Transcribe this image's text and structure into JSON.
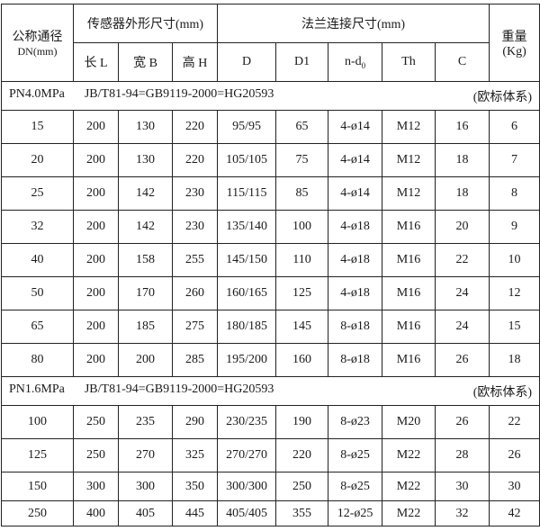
{
  "header": {
    "dn_label": "公称通径",
    "dn_unit": "DN(mm)",
    "sensor_group": "传感器外形尺寸(mm)",
    "flange_group": "法兰连接尺寸(mm)",
    "weight_label": "重量",
    "weight_unit": "(Kg)",
    "columns": [
      "长 L",
      "宽 B",
      "高 H",
      "D",
      "D1",
      "n-d",
      "Th",
      "C"
    ],
    "nd_subscript": "0"
  },
  "sections": [
    {
      "pressure": "PN4.0MPa",
      "standard": "JB/T81-94=GB9119-2000=HG20593",
      "system": "(欧标体系)",
      "rows": [
        [
          "15",
          "200",
          "130",
          "220",
          "95/95",
          "65",
          "4-ø14",
          "M12",
          "16",
          "6"
        ],
        [
          "20",
          "200",
          "130",
          "220",
          "105/105",
          "75",
          "4-ø14",
          "M12",
          "18",
          "7"
        ],
        [
          "25",
          "200",
          "142",
          "230",
          "115/115",
          "85",
          "4-ø14",
          "M12",
          "18",
          "8"
        ],
        [
          "32",
          "200",
          "142",
          "230",
          "135/140",
          "100",
          "4-ø18",
          "M16",
          "20",
          "9"
        ],
        [
          "40",
          "200",
          "158",
          "255",
          "145/150",
          "110",
          "4-ø18",
          "M16",
          "22",
          "10"
        ],
        [
          "50",
          "200",
          "170",
          "260",
          "160/165",
          "125",
          "4-ø18",
          "M16",
          "24",
          "12"
        ],
        [
          "65",
          "200",
          "185",
          "275",
          "180/185",
          "145",
          "8-ø18",
          "M16",
          "24",
          "15"
        ],
        [
          "80",
          "200",
          "200",
          "285",
          "195/200",
          "160",
          "8-ø18",
          "M16",
          "26",
          "18"
        ]
      ]
    },
    {
      "pressure": "PN1.6MPa",
      "standard": "JB/T81-94=GB9119-2000=HG20593",
      "system": "(欧标体系)",
      "rows": [
        [
          "100",
          "250",
          "235",
          "290",
          "230/235",
          "190",
          "8-ø23",
          "M20",
          "26",
          "22"
        ],
        [
          "125",
          "250",
          "270",
          "325",
          "270/270",
          "220",
          "8-ø25",
          "M22",
          "28",
          "26"
        ],
        [
          "150",
          "300",
          "300",
          "350",
          "300/300",
          "250",
          "8-ø25",
          "M22",
          "30",
          "30"
        ],
        [
          "250",
          "400",
          "405",
          "445",
          "405/405",
          "355",
          "12-ø25",
          "M22",
          "32",
          "42"
        ]
      ]
    }
  ]
}
